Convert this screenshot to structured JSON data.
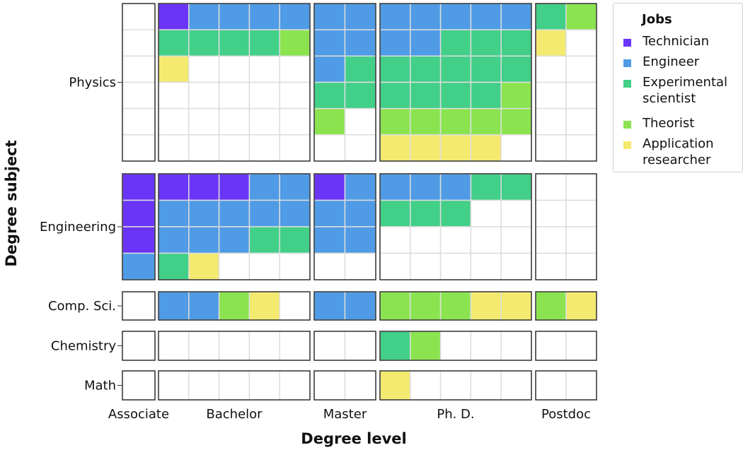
{
  "chart_data": {
    "type": "heatmap",
    "xlabel": "Degree level",
    "ylabel": "Degree subject",
    "column_groups": [
      {
        "name": "Associate",
        "columns": 1
      },
      {
        "name": "Bachelor",
        "columns": 5
      },
      {
        "name": "Master",
        "columns": 2
      },
      {
        "name": "Ph. D.",
        "columns": 5
      },
      {
        "name": "Postdoc",
        "columns": 2
      }
    ],
    "row_groups": [
      {
        "name": "Physics",
        "rows": 6,
        "cells": [
          [
            "",
            "T",
            "E",
            "E",
            "E",
            "E",
            "E",
            "E",
            "E",
            "E",
            "E",
            "E",
            "E",
            "X",
            "H"
          ],
          [
            "",
            "X",
            "X",
            "X",
            "X",
            "H",
            "E",
            "E",
            "E",
            "E",
            "X",
            "X",
            "X",
            "A",
            ""
          ],
          [
            "",
            "A",
            "",
            "",
            "",
            "",
            "E",
            "X",
            "X",
            "X",
            "X",
            "X",
            "X",
            "",
            ""
          ],
          [
            "",
            "",
            "",
            "",
            "",
            "",
            "X",
            "X",
            "X",
            "X",
            "X",
            "X",
            "H",
            "",
            ""
          ],
          [
            "",
            "",
            "",
            "",
            "",
            "",
            "H",
            "",
            "H",
            "H",
            "H",
            "H",
            "H",
            "",
            ""
          ],
          [
            "",
            "",
            "",
            "",
            "",
            "",
            "",
            "",
            "A",
            "A",
            "A",
            "A",
            "",
            "",
            ""
          ]
        ]
      },
      {
        "name": "Engineering",
        "rows": 4,
        "cells": [
          [
            "T",
            "T",
            "T",
            "T",
            "E",
            "E",
            "T",
            "E",
            "E",
            "E",
            "E",
            "X",
            "X",
            "",
            ""
          ],
          [
            "T",
            "E",
            "E",
            "E",
            "E",
            "E",
            "E",
            "E",
            "X",
            "X",
            "X",
            "",
            "",
            "",
            ""
          ],
          [
            "T",
            "E",
            "E",
            "E",
            "X",
            "X",
            "E",
            "E",
            "",
            "",
            "",
            "",
            "",
            "",
            ""
          ],
          [
            "E",
            "X",
            "A",
            "",
            "",
            "",
            "",
            "",
            "",
            "",
            "",
            "",
            "",
            "",
            ""
          ]
        ]
      },
      {
        "name": "Comp. Sci.",
        "rows": 1,
        "cells": [
          [
            "",
            "E",
            "E",
            "H",
            "A",
            "",
            "E",
            "E",
            "H",
            "H",
            "H",
            "A",
            "A",
            "H",
            "A"
          ]
        ]
      },
      {
        "name": "Chemistry",
        "rows": 1,
        "cells": [
          [
            "",
            "",
            "",
            "",
            "",
            "",
            "",
            "",
            "X",
            "H",
            "",
            "",
            "",
            "",
            ""
          ]
        ]
      },
      {
        "name": "Math",
        "rows": 1,
        "cells": [
          [
            "",
            "",
            "",
            "",
            "",
            "",
            "",
            "",
            "A",
            "",
            "",
            "",
            "",
            "",
            ""
          ]
        ]
      }
    ],
    "legend": {
      "title": "Jobs",
      "position": "top-right",
      "items": [
        {
          "code": "T",
          "label": "Technician",
          "color": "#6a35f7"
        },
        {
          "code": "E",
          "label": "Engineer",
          "color": "#4f9be6"
        },
        {
          "code": "X",
          "label": "Experimental scientist",
          "color": "#42cf88"
        },
        {
          "code": "H",
          "label": "Theorist",
          "color": "#8be44f"
        },
        {
          "code": "A",
          "label": "Application researcher",
          "color": "#f4ea6f"
        }
      ]
    },
    "empty_color": "#ffffff",
    "grid": true
  }
}
